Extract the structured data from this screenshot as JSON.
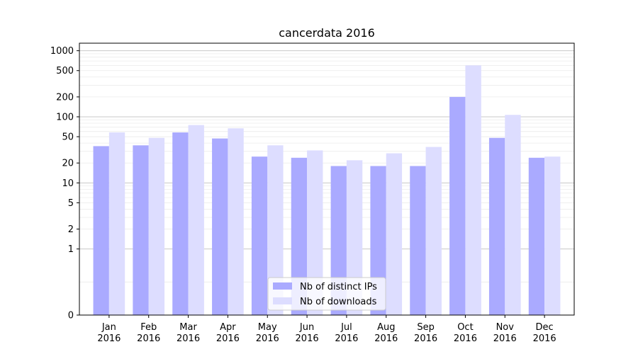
{
  "chart_data": {
    "type": "bar",
    "title": "cancerdata 2016",
    "xlabel": "",
    "ylabel": "",
    "y_scale": "symlog",
    "ylim": [
      0,
      1300
    ],
    "y_ticks": [
      0,
      1,
      2,
      5,
      10,
      20,
      50,
      100,
      200,
      500,
      1000
    ],
    "y_tick_labels": [
      "0",
      "1",
      "2",
      "5",
      "10",
      "20",
      "50",
      "100",
      "200",
      "500",
      "1000"
    ],
    "categories": [
      "Jan\n2016",
      "Feb\n2016",
      "Mar\n2016",
      "Apr\n2016",
      "May\n2016",
      "Jun\n2016",
      "Jul\n2016",
      "Aug\n2016",
      "Sep\n2016",
      "Oct\n2016",
      "Nov\n2016",
      "Dec\n2016"
    ],
    "series": [
      {
        "name": "Nb of distinct IPs",
        "color": "#aaaaff",
        "values": [
          36,
          37,
          58,
          47,
          25,
          24,
          18,
          18,
          18,
          200,
          48,
          24
        ]
      },
      {
        "name": "Nb of downloads",
        "color": "#ddddff",
        "values": [
          58,
          48,
          75,
          67,
          37,
          31,
          22,
          28,
          35,
          600,
          107,
          25
        ]
      }
    ],
    "legend_position": "lower center",
    "grid": true
  }
}
